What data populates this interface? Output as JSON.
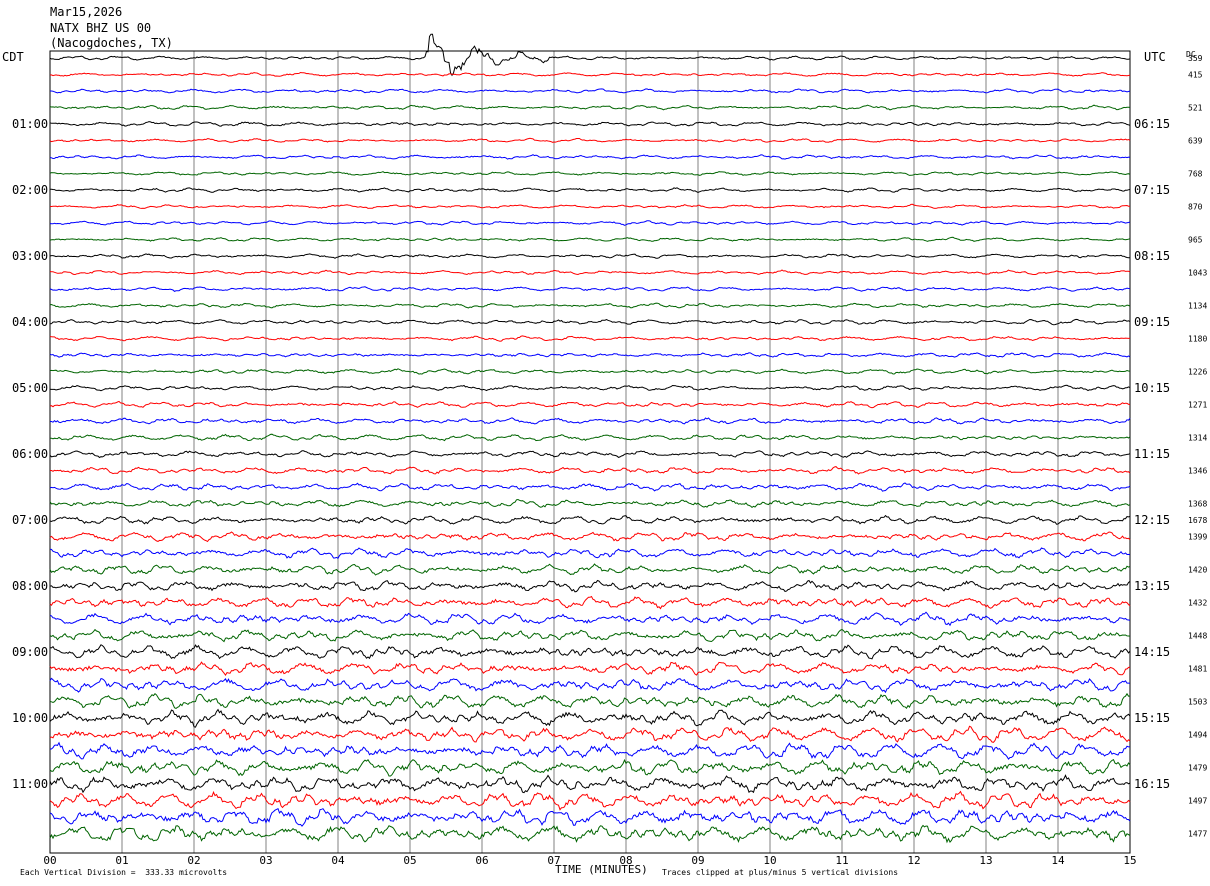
{
  "header": {
    "date": "Mar15,2026",
    "station": "NATX BHZ US 00",
    "location": "(Nacogdoches, TX)"
  },
  "labels": {
    "left_tz": "CDT",
    "right_tz": "UTC",
    "dc": "DC"
  },
  "footer": {
    "vertical_division": "Each Vertical Division =  333.33 microvolts",
    "clipping": "Traces clipped at plus/minus 5 vertical divisions",
    "x_title": "TIME (MINUTES)"
  },
  "colors": {
    "trace_cycle": [
      "#000000",
      "#ff0000",
      "#0000ff",
      "#006400"
    ],
    "grid": "#808080"
  },
  "chart_data": {
    "type": "line",
    "title": "",
    "xlabel": "TIME (MINUTES)",
    "ylabel": "",
    "xlim": [
      0,
      15
    ],
    "x_ticks": [
      "00",
      "01",
      "02",
      "03",
      "04",
      "05",
      "06",
      "07",
      "08",
      "09",
      "10",
      "11",
      "12",
      "13",
      "14",
      "15"
    ],
    "rows": 48,
    "left_time_labels": [
      "01:00",
      "02:00",
      "03:00",
      "04:00",
      "05:00",
      "06:00",
      "07:00",
      "08:00",
      "09:00",
      "10:00",
      "11:00"
    ],
    "right_time_labels": [
      "06:15",
      "07:15",
      "08:15",
      "09:15",
      "10:15",
      "11:15",
      "12:15",
      "13:15",
      "14:15",
      "15:15",
      "16:15"
    ],
    "dc_offsets": [
      "359",
      "415",
      "",
      "521",
      "",
      "639",
      "",
      "768",
      "",
      "870",
      "",
      "965",
      "",
      "1043",
      "",
      "1134",
      "",
      "1180",
      "",
      "1226",
      "",
      "1271",
      "",
      "1314",
      "",
      "1346",
      "",
      "1368",
      "1678",
      "1399",
      "",
      "1420",
      "",
      "1432",
      "",
      "1448",
      "",
      "1481",
      "",
      "1503",
      "",
      "1494",
      "",
      "1479",
      "",
      "1497",
      "",
      "1477"
    ],
    "amplitude_trend": [
      0.55,
      0.5,
      0.55,
      0.55,
      0.6,
      0.5,
      0.55,
      0.5,
      0.55,
      0.5,
      0.55,
      0.5,
      0.55,
      0.55,
      0.6,
      0.6,
      0.65,
      0.6,
      0.65,
      0.65,
      0.7,
      0.75,
      0.8,
      0.8,
      0.85,
      0.9,
      1.0,
      1.0,
      1.1,
      1.2,
      1.3,
      1.3,
      1.4,
      1.5,
      1.6,
      1.6,
      1.7,
      1.7,
      1.8,
      1.9,
      2.0,
      2.0,
      2.1,
      2.1,
      2.2,
      2.2,
      2.3,
      2.3
    ],
    "events": [
      {
        "row": 0,
        "start_minute": 5.2,
        "end_minute": 7.0,
        "peak_amplitude": 4.5
      }
    ]
  }
}
